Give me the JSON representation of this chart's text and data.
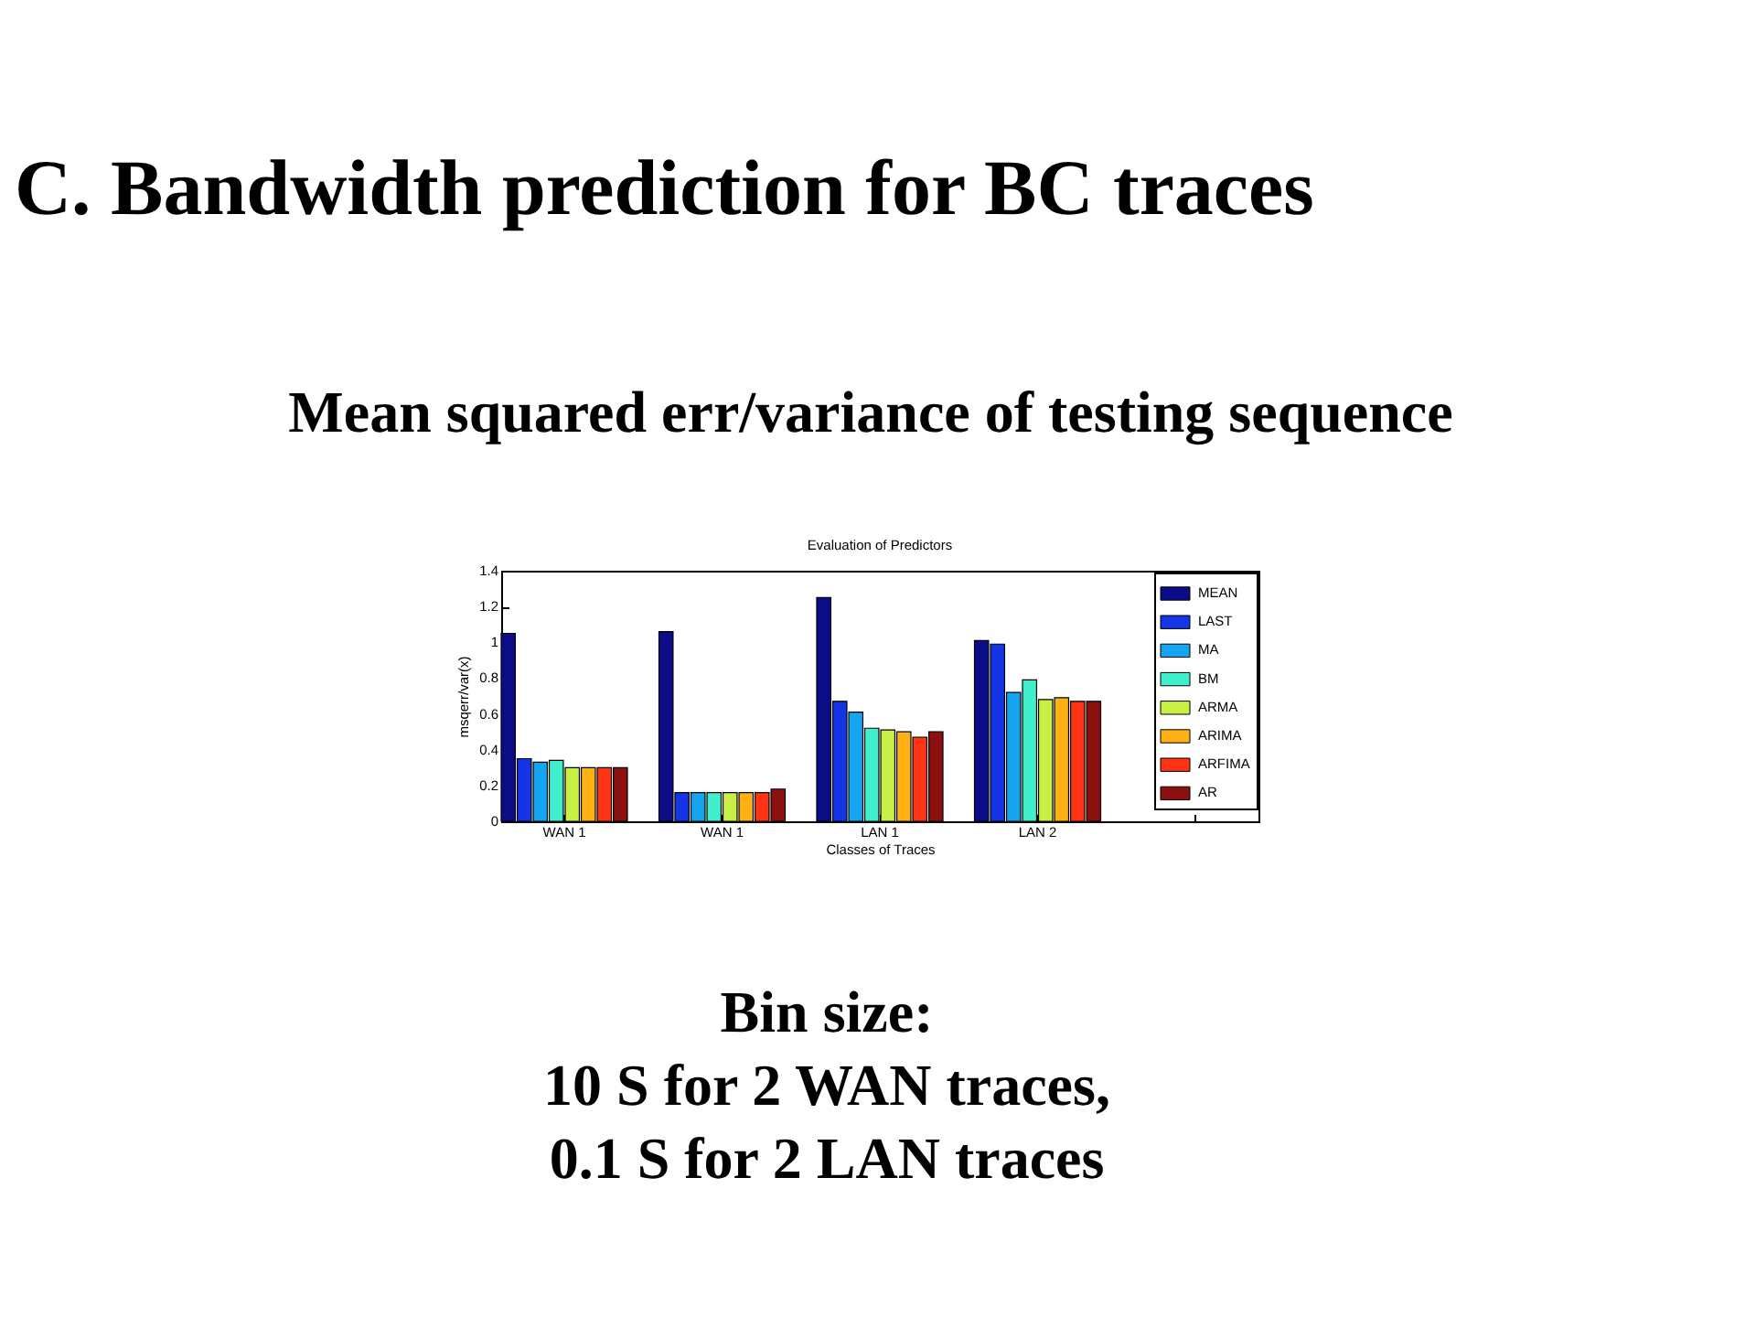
{
  "chart_data": {
    "type": "bar",
    "title": "Evaluation of Predictors",
    "xlabel": "Classes of Traces",
    "ylabel": "msqerr/var(x)",
    "categories": [
      "WAN 1",
      "WAN 1",
      "LAN 1",
      "LAN 2",
      null
    ],
    "series": [
      {
        "name": "MEAN",
        "color": "#0c0c86",
        "values": [
          1.05,
          1.06,
          1.25,
          1.01,
          null
        ]
      },
      {
        "name": "LAST",
        "color": "#1434e6",
        "values": [
          0.35,
          0.16,
          0.67,
          0.99,
          null
        ]
      },
      {
        "name": "MA",
        "color": "#14a4f0",
        "values": [
          0.33,
          0.16,
          0.61,
          0.72,
          null
        ]
      },
      {
        "name": "BM",
        "color": "#40f0cc",
        "values": [
          0.34,
          0.16,
          0.52,
          0.79,
          null
        ]
      },
      {
        "name": "ARMA",
        "color": "#c8f044",
        "values": [
          0.3,
          0.16,
          0.51,
          0.68,
          null
        ]
      },
      {
        "name": "ARIMA",
        "color": "#ffb014",
        "values": [
          0.3,
          0.16,
          0.5,
          0.69,
          null
        ]
      },
      {
        "name": "ARFIMA",
        "color": "#ff3414",
        "values": [
          0.3,
          0.16,
          0.47,
          0.67,
          null
        ]
      },
      {
        "name": "AR",
        "color": "#8c1010",
        "values": [
          0.3,
          0.18,
          0.5,
          0.67,
          null
        ]
      }
    ],
    "ylim": [
      0,
      1.4
    ],
    "yticks": [
      0,
      0.2,
      0.4,
      0.6,
      0.8,
      1,
      1.2,
      1.4
    ],
    "legend": "top right",
    "annotations": [
      "C. Bandwidth prediction for BC traces",
      "Mean squared err/variance of testing sequence",
      "Bin size:\n10 S for 2 WAN traces,\n0.1 S for 2 LAN traces"
    ]
  }
}
